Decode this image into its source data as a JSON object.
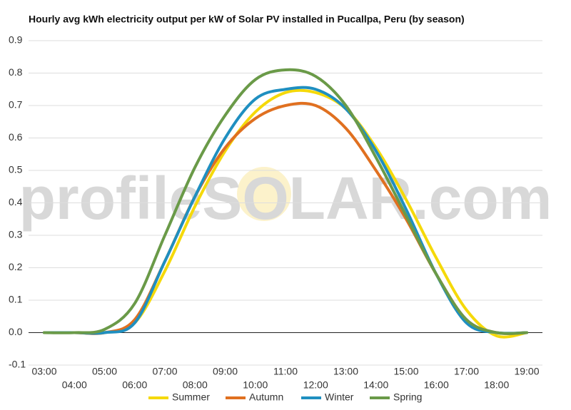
{
  "chart_data": {
    "type": "line",
    "title": "Hourly avg kWh electricity output per kW of Solar PV installed in Pucallpa, Peru (by season)",
    "watermark": "profileSOLAR.com",
    "categories": [
      "03:00",
      "04:00",
      "05:00",
      "06:00",
      "07:00",
      "08:00",
      "09:00",
      "10:00",
      "11:00",
      "12:00",
      "13:00",
      "14:00",
      "15:00",
      "16:00",
      "17:00",
      "18:00",
      "19:00"
    ],
    "series": [
      {
        "name": "Summer",
        "color": "#f5d90a",
        "values": [
          0,
          0,
          0,
          0.03,
          0.19,
          0.39,
          0.56,
          0.68,
          0.74,
          0.74,
          0.69,
          0.57,
          0.41,
          0.23,
          0.07,
          -0.01,
          0
        ]
      },
      {
        "name": "Autumn",
        "color": "#e07020",
        "values": [
          0,
          0,
          0,
          0.04,
          0.22,
          0.42,
          0.57,
          0.66,
          0.7,
          0.7,
          0.63,
          0.5,
          0.35,
          0.18,
          0.04,
          0,
          0
        ]
      },
      {
        "name": "Winter",
        "color": "#1f8fc0",
        "values": [
          0,
          0,
          0,
          0.03,
          0.22,
          0.42,
          0.6,
          0.72,
          0.75,
          0.75,
          0.69,
          0.56,
          0.38,
          0.18,
          0.03,
          0,
          0
        ]
      },
      {
        "name": "Spring",
        "color": "#6a9a48",
        "values": [
          0,
          0,
          0.01,
          0.09,
          0.3,
          0.51,
          0.67,
          0.78,
          0.81,
          0.79,
          0.7,
          0.54,
          0.36,
          0.18,
          0.04,
          0,
          0
        ]
      }
    ],
    "ylim": [
      -0.1,
      0.9
    ],
    "yticks": [
      -0.1,
      {
        "value": 0,
        "label": "0.0"
      },
      0.1,
      0.2,
      0.3,
      0.4,
      0.5,
      0.6,
      0.7,
      0.8,
      0.9
    ],
    "grid": true,
    "legend": "bottom"
  }
}
